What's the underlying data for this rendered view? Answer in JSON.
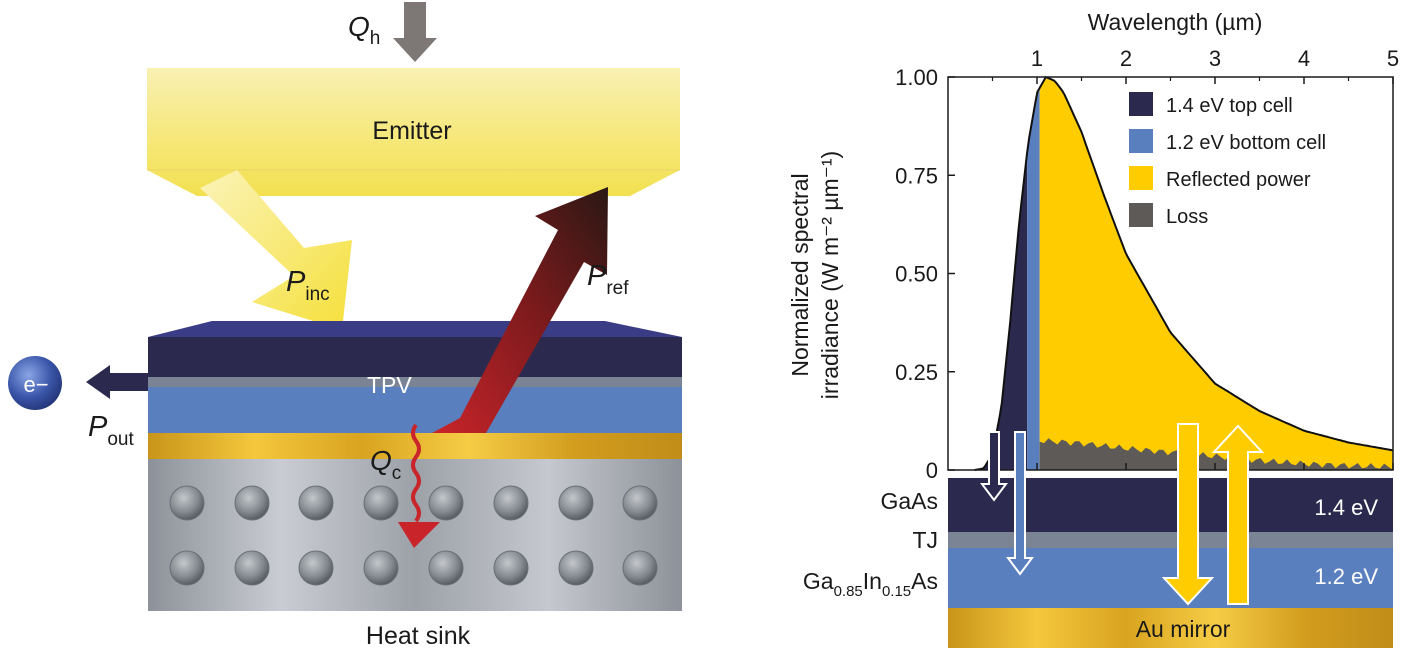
{
  "diagram": {
    "heat_in": {
      "symbol": "Q",
      "subscript": "h"
    },
    "emitter_label": "Emitter",
    "p_inc": {
      "symbol": "P",
      "subscript": "inc"
    },
    "p_ref": {
      "symbol": "P",
      "subscript": "ref"
    },
    "p_out": {
      "symbol": "P",
      "subscript": "out"
    },
    "q_c": {
      "symbol": "Q",
      "subscript": "c"
    },
    "tpv_label": "TPV",
    "electron_label": "e−",
    "heat_sink_label": "Heat sink"
  },
  "chart_data": {
    "type": "area",
    "xlabel": "Wavelength (µm)",
    "ylabel_line1": "Normalized spectral",
    "ylabel_line2": "irradiance (W m⁻² µm⁻¹)",
    "x_range": [
      0.0,
      5.0
    ],
    "x_ticks": [
      "1",
      "2",
      "3",
      "4",
      "5"
    ],
    "y_range": [
      0,
      1.0
    ],
    "y_ticks": [
      "0",
      "0.25",
      "0.50",
      "0.75",
      "1.00"
    ],
    "legend_position": "top-right",
    "series": [
      {
        "name": "1.4 eV top cell",
        "color": "#2b2a4e",
        "x_range": [
          0.0,
          0.89
        ]
      },
      {
        "name": "1.2 eV bottom cell",
        "color": "#5a7fbf",
        "x_range": [
          0.89,
          1.03
        ]
      },
      {
        "name": "Reflected power",
        "color": "#ffcc00",
        "x_range": [
          1.03,
          5.0
        ]
      },
      {
        "name": "Loss",
        "color": "#5e5a57",
        "x_range": [
          1.03,
          5.0
        ]
      }
    ],
    "envelope": {
      "x": [
        0.3,
        0.4,
        0.5,
        0.6,
        0.7,
        0.8,
        0.9,
        1.0,
        1.1,
        1.2,
        1.3,
        1.5,
        1.75,
        2.0,
        2.5,
        3.0,
        3.5,
        4.0,
        4.5,
        5.0
      ],
      "y": [
        0.0,
        0.004,
        0.04,
        0.16,
        0.38,
        0.63,
        0.83,
        0.96,
        1.0,
        0.99,
        0.96,
        0.86,
        0.7,
        0.55,
        0.35,
        0.22,
        0.15,
        0.1,
        0.07,
        0.05
      ]
    },
    "loss_level": {
      "x": [
        1.03,
        1.5,
        2.0,
        2.5,
        3.0,
        3.5,
        4.0,
        4.5,
        5.0
      ],
      "y": [
        0.075,
        0.068,
        0.055,
        0.045,
        0.035,
        0.024,
        0.016,
        0.011,
        0.008
      ]
    }
  },
  "stack": {
    "layers": [
      {
        "name": "GaAs",
        "energy": "1.4 eV",
        "color": "#2b2a4e"
      },
      {
        "name": "TJ",
        "energy": "",
        "color": "#7a8494"
      },
      {
        "name": "Ga0.85In0.15As",
        "energy": "1.2 eV",
        "color": "#5a7fbf"
      },
      {
        "name": "Au mirror",
        "energy": "",
        "color": "#e3b02a"
      }
    ],
    "ga_label": {
      "part1": "Ga",
      "sub1": "0.85",
      "part2": "In",
      "sub2": "0.15",
      "part3": "As"
    }
  }
}
